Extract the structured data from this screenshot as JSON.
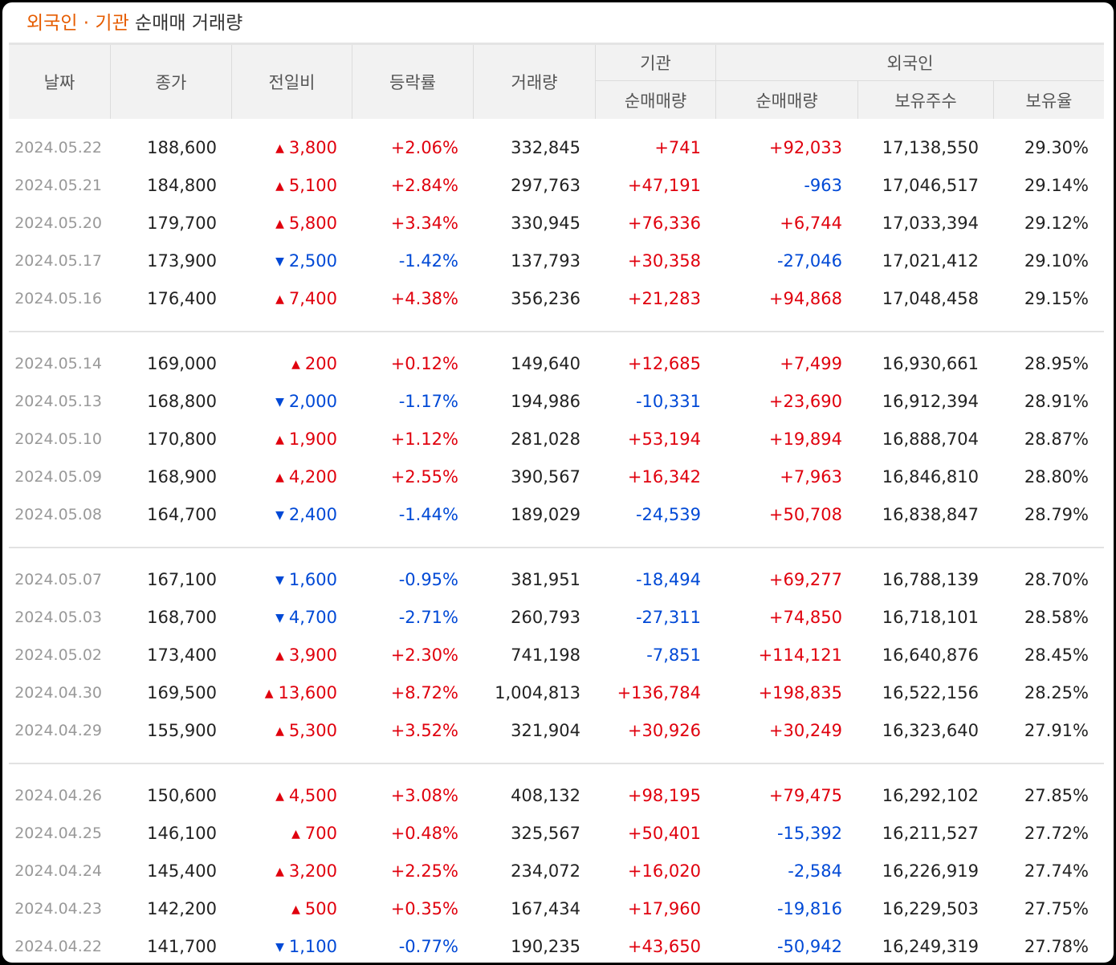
{
  "title": {
    "foreign": "외국인",
    "dot": " · ",
    "inst": "기관",
    "rest": " 순매매 거래량"
  },
  "headers": {
    "date": "날짜",
    "close": "종가",
    "change": "전일비",
    "rate": "등락률",
    "volume": "거래량",
    "inst_group": "기관",
    "inst_net": "순매매량",
    "foreign_group": "외국인",
    "foreign_net": "순매매량",
    "foreign_hold": "보유주수",
    "foreign_ratio": "보유율"
  },
  "colors": {
    "up": "#e0000d",
    "down": "#0049d6",
    "accent": "#e65c00"
  },
  "groups": [
    [
      {
        "date": "2024.05.22",
        "close": "188,600",
        "dir": "up",
        "change": "3,800",
        "rate": "+2.06%",
        "volume": "332,845",
        "inst": "+741",
        "foreign": "+92,033",
        "hold": "17,138,550",
        "ratio": "29.30%"
      },
      {
        "date": "2024.05.21",
        "close": "184,800",
        "dir": "up",
        "change": "5,100",
        "rate": "+2.84%",
        "volume": "297,763",
        "inst": "+47,191",
        "foreign": "-963",
        "hold": "17,046,517",
        "ratio": "29.14%"
      },
      {
        "date": "2024.05.20",
        "close": "179,700",
        "dir": "up",
        "change": "5,800",
        "rate": "+3.34%",
        "volume": "330,945",
        "inst": "+76,336",
        "foreign": "+6,744",
        "hold": "17,033,394",
        "ratio": "29.12%"
      },
      {
        "date": "2024.05.17",
        "close": "173,900",
        "dir": "down",
        "change": "2,500",
        "rate": "-1.42%",
        "volume": "137,793",
        "inst": "+30,358",
        "foreign": "-27,046",
        "hold": "17,021,412",
        "ratio": "29.10%"
      },
      {
        "date": "2024.05.16",
        "close": "176,400",
        "dir": "up",
        "change": "7,400",
        "rate": "+4.38%",
        "volume": "356,236",
        "inst": "+21,283",
        "foreign": "+94,868",
        "hold": "17,048,458",
        "ratio": "29.15%"
      }
    ],
    [
      {
        "date": "2024.05.14",
        "close": "169,000",
        "dir": "up",
        "change": "200",
        "rate": "+0.12%",
        "volume": "149,640",
        "inst": "+12,685",
        "foreign": "+7,499",
        "hold": "16,930,661",
        "ratio": "28.95%"
      },
      {
        "date": "2024.05.13",
        "close": "168,800",
        "dir": "down",
        "change": "2,000",
        "rate": "-1.17%",
        "volume": "194,986",
        "inst": "-10,331",
        "foreign": "+23,690",
        "hold": "16,912,394",
        "ratio": "28.91%"
      },
      {
        "date": "2024.05.10",
        "close": "170,800",
        "dir": "up",
        "change": "1,900",
        "rate": "+1.12%",
        "volume": "281,028",
        "inst": "+53,194",
        "foreign": "+19,894",
        "hold": "16,888,704",
        "ratio": "28.87%"
      },
      {
        "date": "2024.05.09",
        "close": "168,900",
        "dir": "up",
        "change": "4,200",
        "rate": "+2.55%",
        "volume": "390,567",
        "inst": "+16,342",
        "foreign": "+7,963",
        "hold": "16,846,810",
        "ratio": "28.80%"
      },
      {
        "date": "2024.05.08",
        "close": "164,700",
        "dir": "down",
        "change": "2,400",
        "rate": "-1.44%",
        "volume": "189,029",
        "inst": "-24,539",
        "foreign": "+50,708",
        "hold": "16,838,847",
        "ratio": "28.79%"
      }
    ],
    [
      {
        "date": "2024.05.07",
        "close": "167,100",
        "dir": "down",
        "change": "1,600",
        "rate": "-0.95%",
        "volume": "381,951",
        "inst": "-18,494",
        "foreign": "+69,277",
        "hold": "16,788,139",
        "ratio": "28.70%"
      },
      {
        "date": "2024.05.03",
        "close": "168,700",
        "dir": "down",
        "change": "4,700",
        "rate": "-2.71%",
        "volume": "260,793",
        "inst": "-27,311",
        "foreign": "+74,850",
        "hold": "16,718,101",
        "ratio": "28.58%"
      },
      {
        "date": "2024.05.02",
        "close": "173,400",
        "dir": "up",
        "change": "3,900",
        "rate": "+2.30%",
        "volume": "741,198",
        "inst": "-7,851",
        "foreign": "+114,121",
        "hold": "16,640,876",
        "ratio": "28.45%"
      },
      {
        "date": "2024.04.30",
        "close": "169,500",
        "dir": "up",
        "change": "13,600",
        "rate": "+8.72%",
        "volume": "1,004,813",
        "inst": "+136,784",
        "foreign": "+198,835",
        "hold": "16,522,156",
        "ratio": "28.25%"
      },
      {
        "date": "2024.04.29",
        "close": "155,900",
        "dir": "up",
        "change": "5,300",
        "rate": "+3.52%",
        "volume": "321,904",
        "inst": "+30,926",
        "foreign": "+30,249",
        "hold": "16,323,640",
        "ratio": "27.91%"
      }
    ],
    [
      {
        "date": "2024.04.26",
        "close": "150,600",
        "dir": "up",
        "change": "4,500",
        "rate": "+3.08%",
        "volume": "408,132",
        "inst": "+98,195",
        "foreign": "+79,475",
        "hold": "16,292,102",
        "ratio": "27.85%"
      },
      {
        "date": "2024.04.25",
        "close": "146,100",
        "dir": "up",
        "change": "700",
        "rate": "+0.48%",
        "volume": "325,567",
        "inst": "+50,401",
        "foreign": "-15,392",
        "hold": "16,211,527",
        "ratio": "27.72%"
      },
      {
        "date": "2024.04.24",
        "close": "145,400",
        "dir": "up",
        "change": "3,200",
        "rate": "+2.25%",
        "volume": "234,072",
        "inst": "+16,020",
        "foreign": "-2,584",
        "hold": "16,226,919",
        "ratio": "27.74%"
      },
      {
        "date": "2024.04.23",
        "close": "142,200",
        "dir": "up",
        "change": "500",
        "rate": "+0.35%",
        "volume": "167,434",
        "inst": "+17,960",
        "foreign": "-19,816",
        "hold": "16,229,503",
        "ratio": "27.75%"
      },
      {
        "date": "2024.04.22",
        "close": "141,700",
        "dir": "down",
        "change": "1,100",
        "rate": "-0.77%",
        "volume": "190,235",
        "inst": "+43,650",
        "foreign": "-50,942",
        "hold": "16,249,319",
        "ratio": "27.78%"
      }
    ]
  ]
}
